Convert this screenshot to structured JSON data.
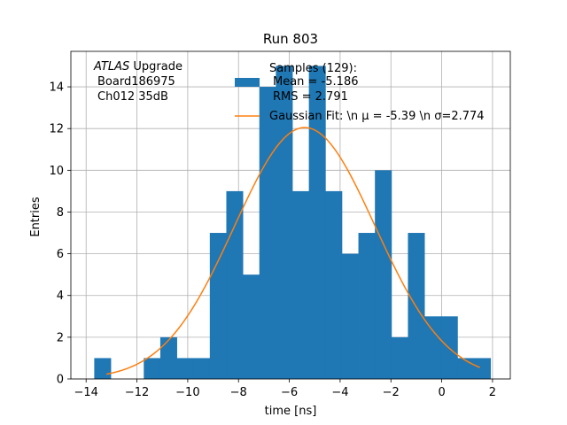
{
  "chart_data": {
    "type": "bar",
    "title": "Run 803",
    "xlabel": "time [ns]",
    "ylabel": "Entries",
    "xlim": [
      -14.6,
      2.7
    ],
    "ylim": [
      0,
      15.7
    ],
    "grid": true,
    "xticks": [
      -14,
      -12,
      -10,
      -8,
      -6,
      -4,
      -2,
      0,
      2
    ],
    "xtick_labels": [
      "−14",
      "−12",
      "−10",
      "−8",
      "−6",
      "−4",
      "−2",
      "0",
      "2"
    ],
    "yticks": [
      0,
      2,
      4,
      6,
      8,
      10,
      12,
      14
    ],
    "ytick_labels": [
      "0",
      "2",
      "4",
      "6",
      "8",
      "10",
      "12",
      "14"
    ],
    "colors": {
      "histogram": "#1f77b4",
      "fit": "#ff7f0e",
      "grid": "#b0b0b0"
    },
    "histogram": {
      "name": "Samples (129):\n Mean = -5.186\n RMS = 2.791",
      "bin_edges": [
        -13.68,
        -13.03,
        -12.38,
        -11.73,
        -11.08,
        -10.43,
        -9.78,
        -9.13,
        -8.48,
        -7.83,
        -7.18,
        -6.53,
        -5.88,
        -5.23,
        -4.58,
        -3.93,
        -3.28,
        -2.63,
        -1.98,
        -1.33,
        -0.68,
        -0.03,
        0.62,
        1.27,
        1.92
      ],
      "counts": [
        1,
        0,
        0,
        1,
        2,
        1,
        1,
        7,
        9,
        5,
        14,
        15,
        9,
        15,
        9,
        6,
        7,
        10,
        2,
        7,
        3,
        3,
        1,
        1
      ]
    },
    "fit": {
      "name": "Gaussian Fit: \\n $\\mu$ = -5.39 \\n $\\sigma$=2.774",
      "mu": -5.39,
      "sigma": 2.774,
      "amplitude": 12.05,
      "x_range": [
        -13.2,
        1.5
      ]
    },
    "annotation": {
      "italic": "ATLAS",
      "rest": " Upgrade",
      "line2": "Board186975",
      "line3": "Ch012 35dB"
    },
    "legend": {
      "position": "upper-right",
      "hist_lines": [
        "Samples (129):",
        "Mean = -5.186",
        "RMS = 2.791"
      ],
      "fit_label": "Gaussian Fit: \\n μ = -5.39 \\n σ=2.774"
    }
  }
}
